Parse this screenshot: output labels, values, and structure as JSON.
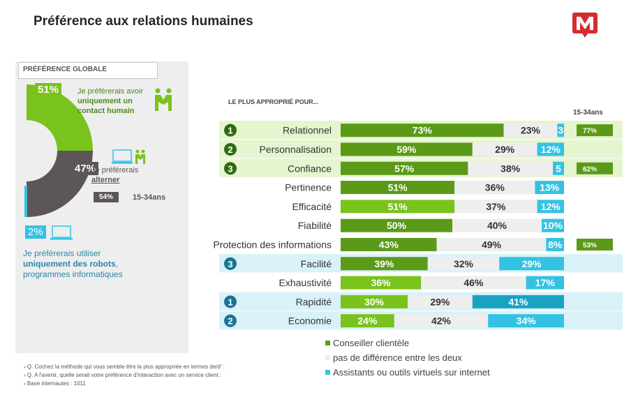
{
  "title": "Préférence aux relations humaines",
  "logo_letter": "M",
  "global": {
    "label": "PRÉFÉRENCE GLOBALE",
    "human": {
      "pct": "51%",
      "text_pre": "Je préférerais avoir ",
      "text_bold": "uniquement un contact humain"
    },
    "alternate": {
      "pct": "47%",
      "text_pre": "Je préférerais ",
      "text_bold": "alterner",
      "sub_pct": "54%",
      "sub_label": "15-34ans"
    },
    "robots": {
      "pct": "2%",
      "text_pre": "Je préférerais utiliser ",
      "text_bold": "uniquement des robots",
      "text_post": ", programmes informatiques"
    }
  },
  "chart_heading": "LE PLUS APPROPRIÉ POUR...",
  "young_heading": "15-34ans",
  "colors": {
    "green_dark": "#5a9a18",
    "green_light": "#7ac21c",
    "grey": "#eeeeee",
    "blue": "#34c2e3",
    "blue_dark": "#1aa3c1",
    "bg_green": "#e5f5d0",
    "bg_blue": "#d9f2f9",
    "dark_grey": "#5d5658"
  },
  "chart_data": {
    "type": "bar",
    "stacked": true,
    "orientation": "horizontal",
    "categories": [
      "Relationnel",
      "Personnalisation",
      "Confiance",
      "Pertinence",
      "Efficacité",
      "Fiabilité",
      "Protection des informations",
      "Facilité",
      "Exhaustivité",
      "Rapidité",
      "Economie"
    ],
    "series": [
      {
        "name": "Conseiller clientèle",
        "values": [
          73,
          59,
          57,
          51,
          51,
          50,
          43,
          39,
          36,
          30,
          24
        ],
        "labels": [
          "73%",
          "59%",
          "57%",
          "51%",
          "51%",
          "50%",
          "43%",
          "39%",
          "36%",
          "30%",
          "24%"
        ]
      },
      {
        "name": "pas de différence entre les deux",
        "values": [
          23,
          29,
          38,
          36,
          37,
          40,
          49,
          32,
          46,
          29,
          42
        ],
        "labels": [
          "23%",
          "29%",
          "38%",
          "36%",
          "37%",
          "40%",
          "49%",
          "32%",
          "46%",
          "29%",
          "42%"
        ]
      },
      {
        "name": "Assistants ou outils virtuels sur internet",
        "values": [
          3,
          12,
          5,
          13,
          12,
          10,
          8,
          29,
          17,
          41,
          34
        ],
        "labels": [
          "3",
          "12%",
          "5",
          "13%",
          "12%",
          "10%",
          "8%",
          "29%",
          "17%",
          "41%",
          "34%"
        ]
      }
    ],
    "ranks": [
      "1",
      "2",
      "3",
      "",
      "",
      "",
      "",
      "3",
      "",
      "1",
      "2"
    ],
    "row_highlight": [
      "green",
      "green",
      "green",
      "",
      "",
      "",
      "",
      "blue",
      "",
      "blue",
      "blue"
    ],
    "young": [
      "77%",
      "",
      "62%",
      "",
      "",
      "",
      "53%",
      "",
      "",
      "",
      ""
    ],
    "xlim": [
      0,
      100
    ]
  },
  "footnotes": [
    "Q. Cochez la méthode qui vous semble être la plus appropriée en termes de/d' :",
    "Q. A l'avenir, quelle serait votre préférence d'interaction avec un service client :",
    "Base internautes : 1011"
  ]
}
